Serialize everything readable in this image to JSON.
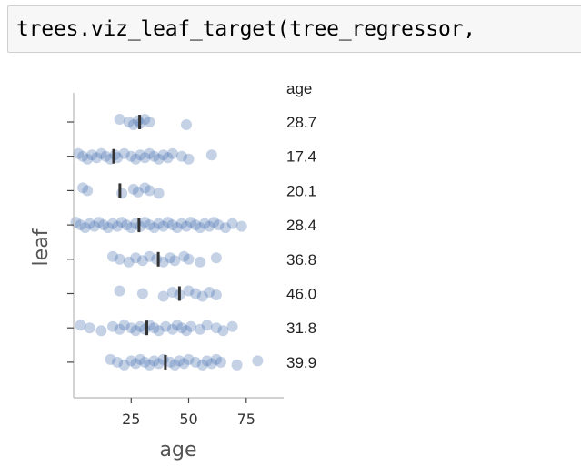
{
  "code_cell": {
    "source": "trees.viz_leaf_target(tree_regressor,"
  },
  "chart_data": {
    "type": "scatter",
    "xlabel": "age",
    "ylabel": "leaf",
    "column_header": "age",
    "xlim": [
      0,
      90
    ],
    "xticks": [
      25,
      50,
      75
    ],
    "grid": false,
    "color": "#4c72b0",
    "mean_marker_color": "#333333",
    "leaves": [
      {
        "mean": 28.7,
        "mean_label": "28.7",
        "values": [
          20,
          24,
          26,
          28,
          29,
          31,
          33,
          49
        ]
      },
      {
        "mean": 17.4,
        "mean_label": "17.4",
        "values": [
          2,
          4,
          6,
          8,
          10,
          12,
          14,
          16,
          18,
          19,
          22,
          25,
          27,
          29,
          31,
          33,
          35,
          37,
          39,
          41,
          43,
          47,
          50,
          60
        ]
      },
      {
        "mean": 20.1,
        "mean_label": "20.1",
        "values": [
          4,
          6,
          21,
          26,
          28,
          31,
          33,
          37
        ]
      },
      {
        "mean": 28.4,
        "mean_label": "28.4",
        "values": [
          1,
          3,
          5,
          7,
          9,
          11,
          13,
          15,
          17,
          19,
          21,
          23,
          25,
          27,
          29,
          31,
          33,
          35,
          37,
          39,
          41,
          43,
          45,
          47,
          49,
          51,
          53,
          55,
          57,
          59,
          61,
          63,
          66,
          69,
          73
        ]
      },
      {
        "mean": 36.8,
        "mean_label": "36.8",
        "values": [
          17,
          20,
          24,
          27,
          30,
          33,
          36,
          39,
          42,
          44,
          48,
          50,
          55,
          62
        ]
      },
      {
        "mean": 46.0,
        "mean_label": "46.0",
        "values": [
          20,
          30,
          39,
          43,
          46,
          50,
          53,
          56,
          59,
          62
        ]
      },
      {
        "mean": 31.8,
        "mean_label": "31.8",
        "values": [
          3,
          7,
          12,
          17,
          20,
          22,
          25,
          27,
          29,
          31,
          33,
          35,
          37,
          40,
          43,
          45,
          47,
          49,
          51,
          55,
          58,
          62,
          65,
          69
        ]
      },
      {
        "mean": 39.9,
        "mean_label": "39.9",
        "values": [
          16,
          19,
          22,
          25,
          27,
          29,
          31,
          33,
          35,
          37,
          39,
          42,
          44,
          46,
          48,
          50,
          53,
          56,
          58,
          60,
          62,
          64,
          71,
          80
        ]
      }
    ]
  }
}
